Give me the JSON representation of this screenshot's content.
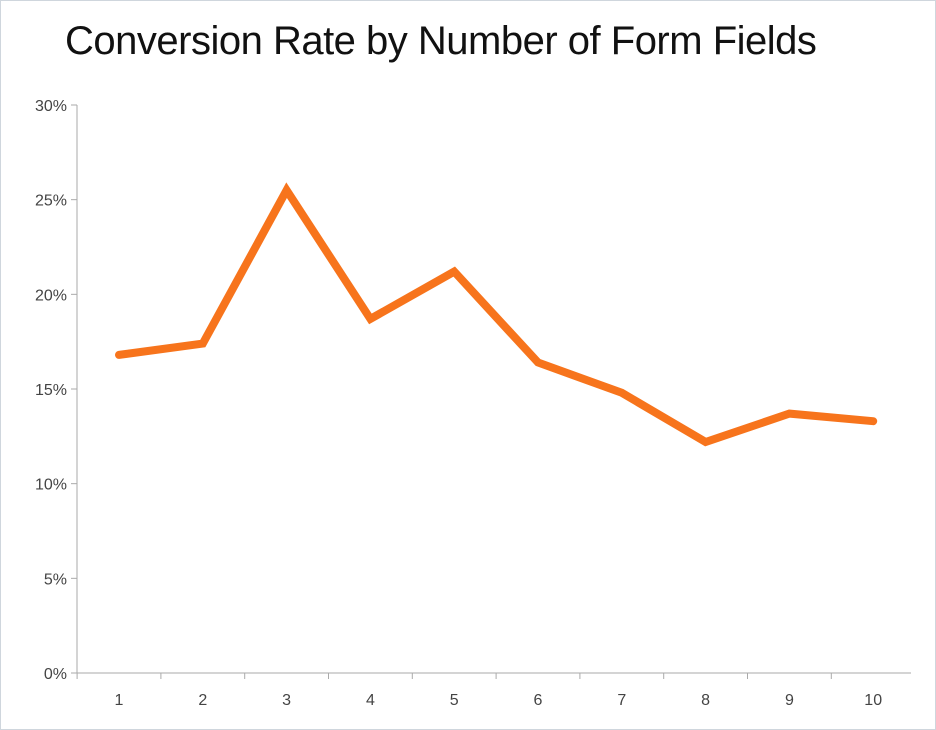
{
  "chart_data": {
    "type": "line",
    "title": "Conversion Rate by Number of Form Fields",
    "xlabel": "",
    "ylabel": "",
    "categories": [
      "1",
      "2",
      "3",
      "4",
      "5",
      "6",
      "7",
      "8",
      "9",
      "10"
    ],
    "series": [
      {
        "values": [
          16.8,
          17.4,
          25.5,
          18.7,
          21.2,
          16.4,
          14.8,
          12.2,
          13.7,
          13.3
        ],
        "color": "#f7741c"
      }
    ],
    "ylim": [
      0,
      30
    ],
    "yticks": [
      "0%",
      "5%",
      "10%",
      "15%",
      "20%",
      "25%",
      "30%"
    ],
    "ytick_values": [
      0,
      5,
      10,
      15,
      20,
      25,
      30
    ],
    "grid": false,
    "legend": "none",
    "colors": {
      "line": "#f7741c",
      "axis": "#aaaaaa",
      "text": "#444444",
      "title": "#111111"
    }
  }
}
